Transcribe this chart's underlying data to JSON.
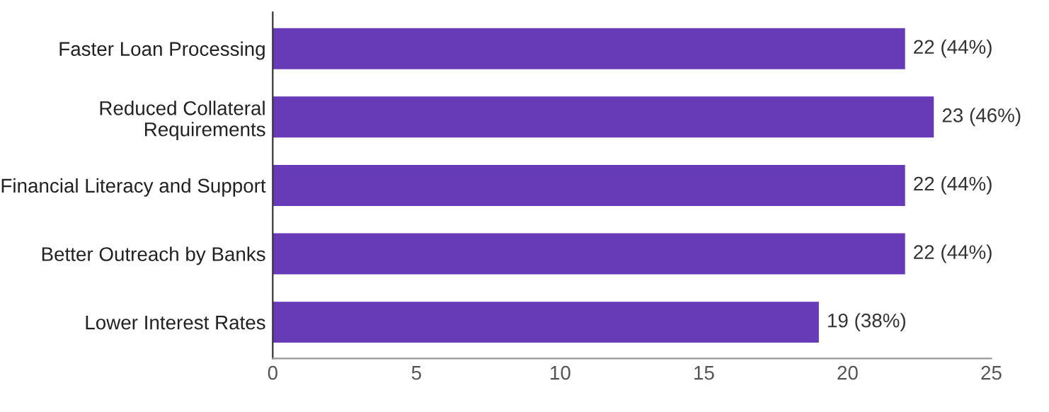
{
  "chart_data": {
    "type": "bar",
    "orientation": "horizontal",
    "categories": [
      "Faster Loan Processing",
      "Reduced Collateral\nRequirements",
      "Financial Literacy and Support",
      "Better Outreach by Banks",
      "Lower Interest Rates"
    ],
    "values": [
      22,
      23,
      22,
      22,
      19
    ],
    "value_labels": [
      "22 (44%)",
      "23 (46%)",
      "22 (44%)",
      "22 (44%)",
      "19 (38%)"
    ],
    "color": "#673ab7",
    "xlim": [
      0,
      25
    ],
    "xticks": [
      0,
      5,
      10,
      15,
      20,
      25
    ],
    "grid": false
  }
}
